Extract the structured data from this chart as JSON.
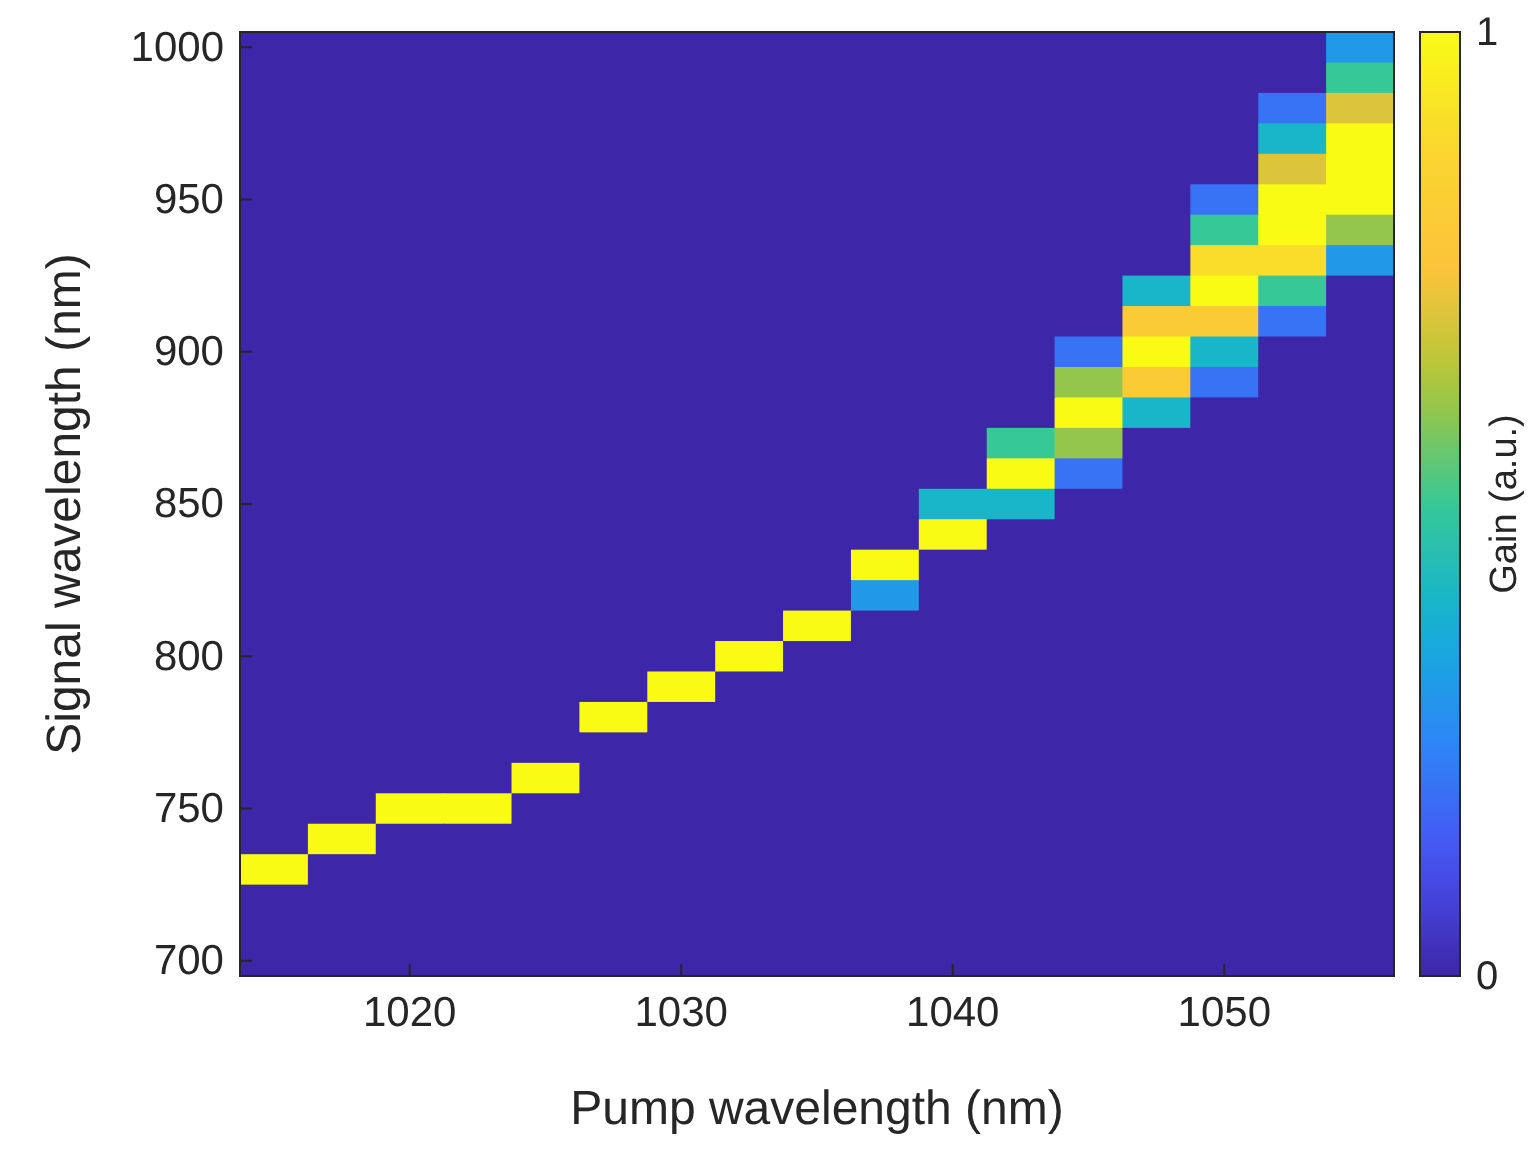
{
  "chart_data": {
    "type": "heatmap",
    "xlabel": "Pump wavelength (nm)",
    "ylabel": "Signal wavelength (nm)",
    "clabel": "Gain (a.u.)",
    "clim": [
      0,
      1
    ],
    "cticks": [
      0,
      1
    ],
    "categories": [
      null,
      null,
      "1020",
      null,
      null,
      null,
      "1030",
      null,
      null,
      null,
      "1040",
      null,
      null,
      null,
      "1050",
      null,
      null
    ],
    "y_categories": [
      "1000",
      null,
      null,
      null,
      null,
      "950",
      null,
      null,
      null,
      null,
      "900",
      null,
      null,
      null,
      null,
      "850",
      null,
      null,
      null,
      null,
      "800",
      null,
      null,
      null,
      null,
      "750",
      null,
      null,
      null,
      null,
      "700"
    ],
    "cells": [
      [
        0,
        0,
        0,
        0,
        0,
        0,
        0,
        0,
        0,
        0,
        0,
        0,
        0,
        0,
        0,
        0,
        0.3
      ],
      [
        0,
        0,
        0,
        0,
        0,
        0,
        0,
        0,
        0,
        0,
        0,
        0,
        0,
        0,
        0,
        0,
        0.5
      ],
      [
        0,
        0,
        0,
        0,
        0,
        0,
        0,
        0,
        0,
        0,
        0,
        0,
        0,
        0,
        0,
        0.2,
        0.7
      ],
      [
        0,
        0,
        0,
        0,
        0,
        0,
        0,
        0,
        0,
        0,
        0,
        0,
        0,
        0,
        0,
        0.4,
        1
      ],
      [
        0,
        0,
        0,
        0,
        0,
        0,
        0,
        0,
        0,
        0,
        0,
        0,
        0,
        0,
        0,
        0.7,
        1
      ],
      [
        0,
        0,
        0,
        0,
        0,
        0,
        0,
        0,
        0,
        0,
        0,
        0,
        0,
        0,
        0.2,
        1,
        1
      ],
      [
        0,
        0,
        0,
        0,
        0,
        0,
        0,
        0,
        0,
        0,
        0,
        0,
        0,
        0,
        0.5,
        1,
        0.6
      ],
      [
        0,
        0,
        0,
        0,
        0,
        0,
        0,
        0,
        0,
        0,
        0,
        0,
        0,
        0,
        0.9,
        0.9,
        0.3
      ],
      [
        0,
        0,
        0,
        0,
        0,
        0,
        0,
        0,
        0,
        0,
        0,
        0,
        0,
        0.4,
        1,
        0.5,
        0
      ],
      [
        0,
        0,
        0,
        0,
        0,
        0,
        0,
        0,
        0,
        0,
        0,
        0,
        0,
        0.8,
        0.8,
        0.2,
        0
      ],
      [
        0,
        0,
        0,
        0,
        0,
        0,
        0,
        0,
        0,
        0,
        0,
        0,
        0.2,
        1,
        0.4,
        0,
        0
      ],
      [
        0,
        0,
        0,
        0,
        0,
        0,
        0,
        0,
        0,
        0,
        0,
        0,
        0.6,
        0.8,
        0.2,
        0,
        0
      ],
      [
        0,
        0,
        0,
        0,
        0,
        0,
        0,
        0,
        0,
        0,
        0,
        0,
        1,
        0.4,
        0,
        0,
        0
      ],
      [
        0,
        0,
        0,
        0,
        0,
        0,
        0,
        0,
        0,
        0,
        0,
        0.5,
        0.6,
        0,
        0,
        0,
        0
      ],
      [
        0,
        0,
        0,
        0,
        0,
        0,
        0,
        0,
        0,
        0,
        0,
        1,
        0.2,
        0,
        0,
        0,
        0
      ],
      [
        0,
        0,
        0,
        0,
        0,
        0,
        0,
        0,
        0,
        0,
        0.4,
        0.4,
        0,
        0,
        0,
        0,
        0
      ],
      [
        0,
        0,
        0,
        0,
        0,
        0,
        0,
        0,
        0,
        0,
        1,
        0,
        0,
        0,
        0,
        0,
        0
      ],
      [
        0,
        0,
        0,
        0,
        0,
        0,
        0,
        0,
        0,
        1,
        0,
        0,
        0,
        0,
        0,
        0,
        0
      ],
      [
        0,
        0,
        0,
        0,
        0,
        0,
        0,
        0,
        0,
        0.3,
        0,
        0,
        0,
        0,
        0,
        0,
        0
      ],
      [
        0,
        0,
        0,
        0,
        0,
        0,
        0,
        0,
        1,
        0,
        0,
        0,
        0,
        0,
        0,
        0,
        0
      ],
      [
        0,
        0,
        0,
        0,
        0,
        0,
        0,
        1,
        0,
        0,
        0,
        0,
        0,
        0,
        0,
        0,
        0
      ],
      [
        0,
        0,
        0,
        0,
        0,
        0,
        1,
        0,
        0,
        0,
        0,
        0,
        0,
        0,
        0,
        0,
        0
      ],
      [
        0,
        0,
        0,
        0,
        0,
        1,
        0,
        0,
        0,
        0,
        0,
        0,
        0,
        0,
        0,
        0,
        0
      ],
      [
        0,
        0,
        0,
        0,
        0,
        0,
        0,
        0,
        0,
        0,
        0,
        0,
        0,
        0,
        0,
        0,
        0
      ],
      [
        0,
        0,
        0,
        0,
        1,
        0,
        0,
        0,
        0,
        0,
        0,
        0,
        0,
        0,
        0,
        0,
        0
      ],
      [
        0,
        0,
        1,
        1,
        0,
        0,
        0,
        0,
        0,
        0,
        0,
        0,
        0,
        0,
        0,
        0,
        0
      ],
      [
        0,
        1,
        0,
        0,
        0,
        0,
        0,
        0,
        0,
        0,
        0,
        0,
        0,
        0,
        0,
        0,
        0
      ],
      [
        1,
        0,
        0,
        0,
        0,
        0,
        0,
        0,
        0,
        0,
        0,
        0,
        0,
        0,
        0,
        0,
        0
      ],
      [
        0,
        0,
        0,
        0,
        0,
        0,
        0,
        0,
        0,
        0,
        0,
        0,
        0,
        0,
        0,
        0,
        0
      ],
      [
        0,
        0,
        0,
        0,
        0,
        0,
        0,
        0,
        0,
        0,
        0,
        0,
        0,
        0,
        0,
        0,
        0
      ],
      [
        0,
        0,
        0,
        0,
        0,
        0,
        0,
        0,
        0,
        0,
        0,
        0,
        0,
        0,
        0,
        0,
        0
      ]
    ]
  }
}
